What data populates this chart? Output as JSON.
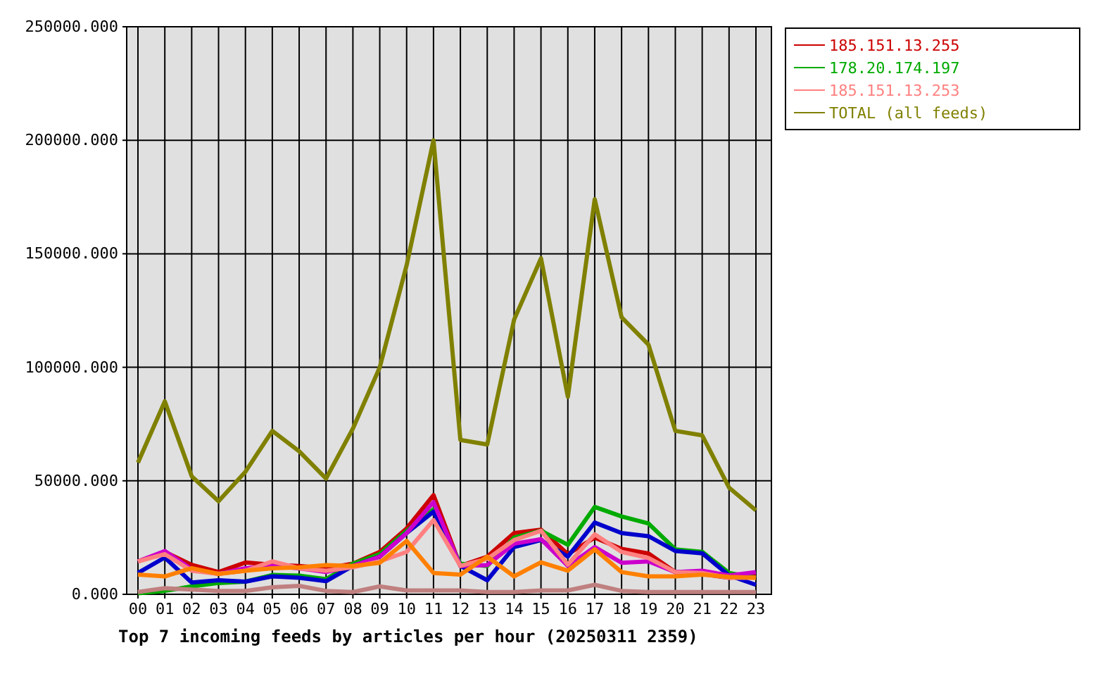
{
  "chart_data": {
    "type": "line",
    "title": "Top 7 incoming feeds by articles per hour (20250311 2359)",
    "categories": [
      "00",
      "01",
      "02",
      "03",
      "04",
      "05",
      "06",
      "07",
      "08",
      "09",
      "10",
      "11",
      "12",
      "13",
      "14",
      "15",
      "16",
      "17",
      "18",
      "19",
      "20",
      "21",
      "22",
      "23"
    ],
    "series": [
      {
        "name": "185.151.13.255",
        "color": "#cc0000",
        "values": [
          14500,
          18700,
          13000,
          9800,
          14000,
          13000,
          12500,
          11500,
          13500,
          18700,
          29000,
          43700,
          12500,
          16600,
          27000,
          28500,
          17700,
          25000,
          20000,
          18000,
          9800,
          9000,
          7300,
          8300
        ]
      },
      {
        "name": "178.20.174.197",
        "color": "#00aa00",
        "values": [
          500,
          1500,
          3500,
          5000,
          5600,
          8500,
          8200,
          6700,
          13500,
          17700,
          28000,
          37400,
          13500,
          12500,
          25000,
          28000,
          21800,
          38500,
          34300,
          31200,
          19800,
          18700,
          9400,
          7300
        ]
      },
      {
        "color": "#0000cc",
        "values": [
          9400,
          16200,
          5200,
          6200,
          5600,
          7900,
          7300,
          5800,
          12500,
          16600,
          27000,
          36400,
          12500,
          6200,
          20800,
          23900,
          16600,
          31600,
          27000,
          25600,
          19100,
          18100,
          8300,
          4200
        ]
      },
      {
        "color": "#cc00cc",
        "values": [
          14500,
          19100,
          11000,
          9000,
          11500,
          12500,
          11500,
          9800,
          12500,
          16600,
          27000,
          40600,
          12500,
          12900,
          22300,
          24300,
          12500,
          20800,
          13900,
          14500,
          9800,
          10400,
          8300,
          9800
        ]
      },
      {
        "name": "185.151.13.253",
        "color": "#ff8080",
        "values": [
          14500,
          17700,
          10400,
          9000,
          10400,
          14500,
          11500,
          10400,
          11900,
          14500,
          18700,
          32700,
          12500,
          15600,
          23900,
          28000,
          13100,
          26400,
          18700,
          16000,
          9800,
          9400,
          7300,
          7300
        ]
      },
      {
        "color": "#ff8000",
        "values": [
          8700,
          7900,
          11500,
          9000,
          10400,
          11500,
          11900,
          12900,
          12500,
          13900,
          23500,
          9400,
          8700,
          16600,
          7900,
          14100,
          10400,
          19800,
          9800,
          7900,
          7900,
          8700,
          7700,
          7300
        ]
      },
      {
        "color": "#c08080",
        "values": [
          1000,
          2700,
          2100,
          1500,
          1500,
          3100,
          3700,
          1500,
          1000,
          3500,
          1700,
          1700,
          1700,
          1000,
          1000,
          1700,
          1700,
          4200,
          1500,
          1000,
          1000,
          1000,
          1000,
          1000
        ]
      },
      {
        "name": "TOTAL (all feeds)",
        "color": "#808000",
        "values": [
          58000,
          85000,
          52000,
          41000,
          54000,
          72000,
          63000,
          51000,
          73000,
          100000,
          145000,
          200000,
          68000,
          66000,
          121000,
          148000,
          87000,
          174000,
          122000,
          110000,
          72000,
          70000,
          47000,
          37000
        ]
      }
    ],
    "ylim": [
      0,
      250000
    ],
    "yticks": [
      {
        "value": 0,
        "label": "0.000"
      },
      {
        "value": 50000,
        "label": "50000.000"
      },
      {
        "value": 100000,
        "label": "100000.000"
      },
      {
        "value": 150000,
        "label": "150000.000"
      },
      {
        "value": 200000,
        "label": "200000.000"
      },
      {
        "value": 250000,
        "label": "250000.000"
      }
    ],
    "grid": true,
    "legend": "right",
    "marker": "none",
    "line_style": "solid"
  }
}
